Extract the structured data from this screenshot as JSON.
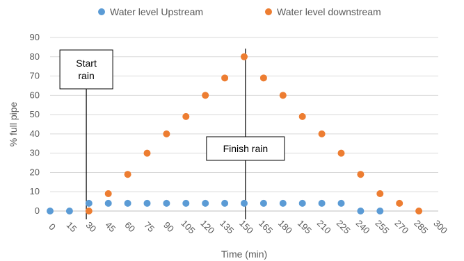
{
  "chart_data": {
    "type": "scatter",
    "xlabel": "Time (min)",
    "ylabel": "% full pipe",
    "xlim": [
      0,
      300
    ],
    "ylim": [
      0,
      90
    ],
    "x_ticks": [
      0,
      15,
      30,
      45,
      60,
      75,
      90,
      105,
      120,
      135,
      150,
      165,
      180,
      195,
      210,
      225,
      240,
      255,
      270,
      285,
      300
    ],
    "y_ticks": [
      0,
      10,
      20,
      30,
      40,
      50,
      60,
      70,
      80,
      90
    ],
    "grid": "horizontal",
    "legend_position": "top",
    "series": [
      {
        "name": "Water level Upstream",
        "color": "#5B9BD5",
        "points": [
          [
            0,
            0
          ],
          [
            15,
            0
          ],
          [
            30,
            4
          ],
          [
            45,
            4
          ],
          [
            60,
            4
          ],
          [
            75,
            4
          ],
          [
            90,
            4
          ],
          [
            105,
            4
          ],
          [
            120,
            4
          ],
          [
            135,
            4
          ],
          [
            150,
            4
          ],
          [
            165,
            4
          ],
          [
            180,
            4
          ],
          [
            195,
            4
          ],
          [
            210,
            4
          ],
          [
            225,
            4
          ],
          [
            240,
            0
          ],
          [
            255,
            0
          ]
        ]
      },
      {
        "name": "Water level downstream",
        "color": "#ED7D31",
        "points": [
          [
            30,
            0
          ],
          [
            45,
            9
          ],
          [
            60,
            19
          ],
          [
            75,
            30
          ],
          [
            90,
            40
          ],
          [
            105,
            49
          ],
          [
            120,
            60
          ],
          [
            135,
            69
          ],
          [
            150,
            80
          ],
          [
            165,
            69
          ],
          [
            180,
            60
          ],
          [
            195,
            49
          ],
          [
            210,
            40
          ],
          [
            225,
            30
          ],
          [
            240,
            19
          ],
          [
            255,
            9
          ],
          [
            270,
            4
          ],
          [
            285,
            0
          ]
        ]
      }
    ],
    "annotations": [
      {
        "id": "start",
        "lines": [
          "Start",
          "rain"
        ],
        "x": 28
      },
      {
        "id": "finish",
        "lines": [
          "Finish rain"
        ],
        "x": 151
      }
    ]
  }
}
